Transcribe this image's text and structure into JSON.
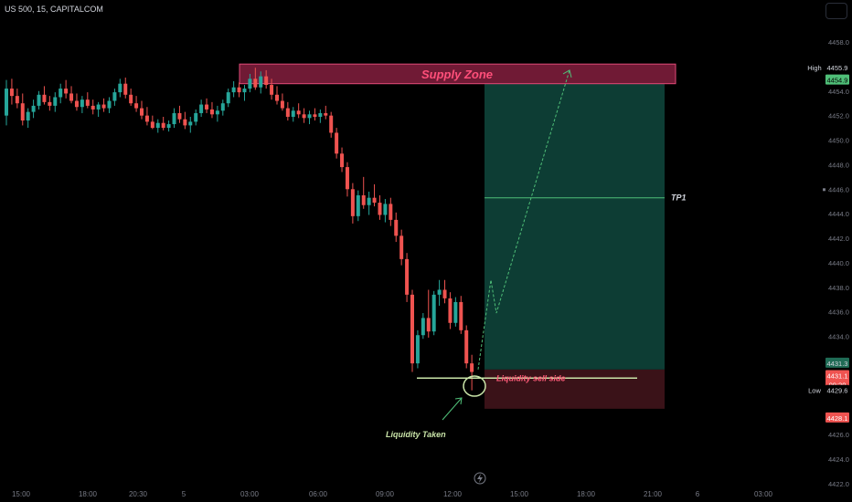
{
  "header": {
    "symbol": "US 500, 15, CAPITALCOM"
  },
  "chart_data": {
    "type": "candlestick",
    "ylim": [
      4422.0,
      4460.0
    ],
    "y_ticks": [
      "4458.0",
      "4454.0",
      "4452.0",
      "4450.0",
      "4448.0",
      "4446.0",
      "4444.0",
      "4442.0",
      "4440.0",
      "4438.0",
      "4436.0",
      "4434.0",
      "4426.0",
      "4424.0",
      "4422.0"
    ],
    "x_ticks": [
      "15:00",
      "18:00",
      "20:30",
      "5",
      "03:00",
      "06:00",
      "09:00",
      "12:00",
      "15:00",
      "18:00",
      "21:00",
      "6",
      "03:00"
    ],
    "price_labels": {
      "high_tag": "High",
      "high_value": "4455.9",
      "current_value": "4454.9",
      "low_tag": "Low",
      "low_value": "4429.6",
      "entry_top": "4431.3",
      "entry_mid": "4431.1",
      "entry_countdown": "09:20",
      "stop_value": "4428.1"
    },
    "annotations": {
      "supply_zone": "Supply Zone",
      "tp1": "TP1",
      "liquidity_sell_side": "Liquidity sell side",
      "liquidity_taken": "Liquidity Taken"
    },
    "zones": {
      "supply": [
        4454.6,
        4456.2
      ],
      "target": [
        4431.3,
        4454.6
      ],
      "stop": [
        4428.1,
        4431.3
      ],
      "tp1_level": 4445.3,
      "liquidity_level": 4430.6
    },
    "colors": {
      "up": "#26a69a",
      "down": "#ef5350",
      "supply": "#9b2449",
      "target": "#0d3d34",
      "stop": "#3a1218"
    },
    "candles": [
      {
        "o": 4452.0,
        "h": 4454.9,
        "l": 4451.2,
        "c": 4454.2
      },
      {
        "o": 4454.2,
        "h": 4455.0,
        "l": 4452.9,
        "c": 4453.6
      },
      {
        "o": 4453.6,
        "h": 4454.2,
        "l": 4452.6,
        "c": 4453.0
      },
      {
        "o": 4453.0,
        "h": 4453.8,
        "l": 4451.2,
        "c": 4451.6
      },
      {
        "o": 4451.6,
        "h": 4452.6,
        "l": 4451.0,
        "c": 4452.3
      },
      {
        "o": 4452.3,
        "h": 4453.3,
        "l": 4451.8,
        "c": 4452.8
      },
      {
        "o": 4452.8,
        "h": 4454.0,
        "l": 4452.5,
        "c": 4453.7
      },
      {
        "o": 4453.7,
        "h": 4454.4,
        "l": 4452.9,
        "c": 4453.1
      },
      {
        "o": 4453.1,
        "h": 4453.6,
        "l": 4452.4,
        "c": 4452.8
      },
      {
        "o": 4452.8,
        "h": 4453.9,
        "l": 4452.3,
        "c": 4453.5
      },
      {
        "o": 4453.5,
        "h": 4454.6,
        "l": 4453.0,
        "c": 4454.2
      },
      {
        "o": 4454.2,
        "h": 4454.9,
        "l": 4453.4,
        "c": 4453.8
      },
      {
        "o": 4453.8,
        "h": 4454.4,
        "l": 4453.0,
        "c": 4453.2
      },
      {
        "o": 4453.2,
        "h": 4453.8,
        "l": 4452.4,
        "c": 4452.7
      },
      {
        "o": 4452.7,
        "h": 4453.6,
        "l": 4452.2,
        "c": 4453.3
      },
      {
        "o": 4453.3,
        "h": 4453.9,
        "l": 4452.6,
        "c": 4452.8
      },
      {
        "o": 4452.8,
        "h": 4453.3,
        "l": 4452.1,
        "c": 4452.5
      },
      {
        "o": 4452.5,
        "h": 4453.1,
        "l": 4451.9,
        "c": 4452.9
      },
      {
        "o": 4452.9,
        "h": 4453.4,
        "l": 4452.3,
        "c": 4452.6
      },
      {
        "o": 4452.6,
        "h": 4453.5,
        "l": 4452.2,
        "c": 4453.2
      },
      {
        "o": 4453.2,
        "h": 4454.2,
        "l": 4452.8,
        "c": 4453.9
      },
      {
        "o": 4453.9,
        "h": 4455.0,
        "l": 4453.5,
        "c": 4454.6
      },
      {
        "o": 4454.6,
        "h": 4455.1,
        "l": 4453.4,
        "c": 4453.7
      },
      {
        "o": 4453.7,
        "h": 4454.2,
        "l": 4452.8,
        "c": 4453.0
      },
      {
        "o": 4453.0,
        "h": 4453.6,
        "l": 4452.3,
        "c": 4452.6
      },
      {
        "o": 4452.6,
        "h": 4453.2,
        "l": 4451.7,
        "c": 4452.0
      },
      {
        "o": 4452.0,
        "h": 4452.7,
        "l": 4451.2,
        "c": 4451.5
      },
      {
        "o": 4451.5,
        "h": 4452.0,
        "l": 4450.9,
        "c": 4451.0
      },
      {
        "o": 4451.0,
        "h": 4451.7,
        "l": 4450.6,
        "c": 4451.4
      },
      {
        "o": 4451.4,
        "h": 4451.9,
        "l": 4450.8,
        "c": 4451.0
      },
      {
        "o": 4451.0,
        "h": 4451.6,
        "l": 4450.7,
        "c": 4451.3
      },
      {
        "o": 4451.3,
        "h": 4452.6,
        "l": 4451.0,
        "c": 4452.2
      },
      {
        "o": 4452.2,
        "h": 4452.8,
        "l": 4451.4,
        "c": 4451.7
      },
      {
        "o": 4451.7,
        "h": 4452.3,
        "l": 4450.9,
        "c": 4451.2
      },
      {
        "o": 4451.2,
        "h": 4451.9,
        "l": 4450.6,
        "c": 4451.5
      },
      {
        "o": 4451.5,
        "h": 4452.5,
        "l": 4451.2,
        "c": 4452.2
      },
      {
        "o": 4452.2,
        "h": 4453.3,
        "l": 4451.9,
        "c": 4452.9
      },
      {
        "o": 4452.9,
        "h": 4453.4,
        "l": 4452.2,
        "c": 4452.5
      },
      {
        "o": 4452.5,
        "h": 4453.1,
        "l": 4451.8,
        "c": 4452.1
      },
      {
        "o": 4452.1,
        "h": 4452.8,
        "l": 4451.5,
        "c": 4452.4
      },
      {
        "o": 4452.4,
        "h": 4453.3,
        "l": 4452.0,
        "c": 4453.0
      },
      {
        "o": 4453.0,
        "h": 4454.2,
        "l": 4452.7,
        "c": 4453.9
      },
      {
        "o": 4453.9,
        "h": 4454.8,
        "l": 4453.5,
        "c": 4454.3
      },
      {
        "o": 4454.3,
        "h": 4454.7,
        "l": 4453.5,
        "c": 4453.9
      },
      {
        "o": 4453.9,
        "h": 4454.5,
        "l": 4453.2,
        "c": 4454.2
      },
      {
        "o": 4454.2,
        "h": 4455.4,
        "l": 4453.9,
        "c": 4455.0
      },
      {
        "o": 4455.0,
        "h": 4455.9,
        "l": 4454.1,
        "c": 4454.3
      },
      {
        "o": 4454.3,
        "h": 4455.6,
        "l": 4453.8,
        "c": 4455.2
      },
      {
        "o": 4455.2,
        "h": 4455.7,
        "l": 4454.2,
        "c": 4454.5
      },
      {
        "o": 4454.5,
        "h": 4455.0,
        "l": 4453.3,
        "c": 4453.7
      },
      {
        "o": 4453.7,
        "h": 4454.4,
        "l": 4452.9,
        "c": 4453.2
      },
      {
        "o": 4453.2,
        "h": 4453.8,
        "l": 4452.4,
        "c": 4452.6
      },
      {
        "o": 4452.6,
        "h": 4453.1,
        "l": 4451.6,
        "c": 4451.9
      },
      {
        "o": 4451.9,
        "h": 4452.7,
        "l": 4451.5,
        "c": 4452.4
      },
      {
        "o": 4452.4,
        "h": 4453.0,
        "l": 4451.8,
        "c": 4452.1
      },
      {
        "o": 4452.1,
        "h": 4452.6,
        "l": 4451.4,
        "c": 4451.8
      },
      {
        "o": 4451.8,
        "h": 4452.4,
        "l": 4451.3,
        "c": 4452.1
      },
      {
        "o": 4452.1,
        "h": 4452.6,
        "l": 4451.6,
        "c": 4451.9
      },
      {
        "o": 4451.9,
        "h": 4452.5,
        "l": 4451.4,
        "c": 4452.2
      },
      {
        "o": 4452.2,
        "h": 4452.8,
        "l": 4451.7,
        "c": 4452.0
      },
      {
        "o": 4452.0,
        "h": 4452.3,
        "l": 4450.2,
        "c": 4450.6
      },
      {
        "o": 4450.6,
        "h": 4451.0,
        "l": 4448.5,
        "c": 4448.9
      },
      {
        "o": 4448.9,
        "h": 4449.4,
        "l": 4447.4,
        "c": 4447.8
      },
      {
        "o": 4447.8,
        "h": 4448.2,
        "l": 4445.4,
        "c": 4446.0
      },
      {
        "o": 4446.0,
        "h": 4446.5,
        "l": 4443.2,
        "c": 4443.8
      },
      {
        "o": 4443.8,
        "h": 4445.9,
        "l": 4443.4,
        "c": 4445.5
      },
      {
        "o": 4445.5,
        "h": 4447.0,
        "l": 4444.4,
        "c": 4444.7
      },
      {
        "o": 4444.7,
        "h": 4445.8,
        "l": 4443.9,
        "c": 4445.3
      },
      {
        "o": 4445.3,
        "h": 4446.4,
        "l": 4444.6,
        "c": 4444.9
      },
      {
        "o": 4444.9,
        "h": 4445.5,
        "l": 4443.5,
        "c": 4443.9
      },
      {
        "o": 4443.9,
        "h": 4445.2,
        "l": 4443.3,
        "c": 4444.8
      },
      {
        "o": 4444.8,
        "h": 4445.3,
        "l": 4443.0,
        "c": 4443.5
      },
      {
        "o": 4443.5,
        "h": 4444.1,
        "l": 4441.7,
        "c": 4442.2
      },
      {
        "o": 4442.2,
        "h": 4442.7,
        "l": 4439.8,
        "c": 4440.3
      },
      {
        "o": 4440.3,
        "h": 4440.8,
        "l": 4436.8,
        "c": 4437.4
      },
      {
        "o": 4437.4,
        "h": 4437.8,
        "l": 4431.1,
        "c": 4431.8
      },
      {
        "o": 4431.8,
        "h": 4434.5,
        "l": 4431.4,
        "c": 4434.1
      },
      {
        "o": 4434.1,
        "h": 4435.9,
        "l": 4433.8,
        "c": 4435.5
      },
      {
        "o": 4435.5,
        "h": 4437.8,
        "l": 4433.9,
        "c": 4434.4
      },
      {
        "o": 4434.4,
        "h": 4437.7,
        "l": 4434.1,
        "c": 4437.4
      },
      {
        "o": 4437.4,
        "h": 4438.6,
        "l": 4436.5,
        "c": 4437.8
      },
      {
        "o": 4437.8,
        "h": 4438.6,
        "l": 4436.7,
        "c": 4437.1
      },
      {
        "o": 4437.1,
        "h": 4437.6,
        "l": 4434.6,
        "c": 4435.1
      },
      {
        "o": 4435.1,
        "h": 4437.2,
        "l": 4434.8,
        "c": 4436.8
      },
      {
        "o": 4436.8,
        "h": 4437.3,
        "l": 4434.2,
        "c": 4434.5
      },
      {
        "o": 4434.5,
        "h": 4434.9,
        "l": 4431.4,
        "c": 4431.8
      },
      {
        "o": 4431.8,
        "h": 4432.5,
        "l": 4429.6,
        "c": 4431.1
      }
    ]
  }
}
